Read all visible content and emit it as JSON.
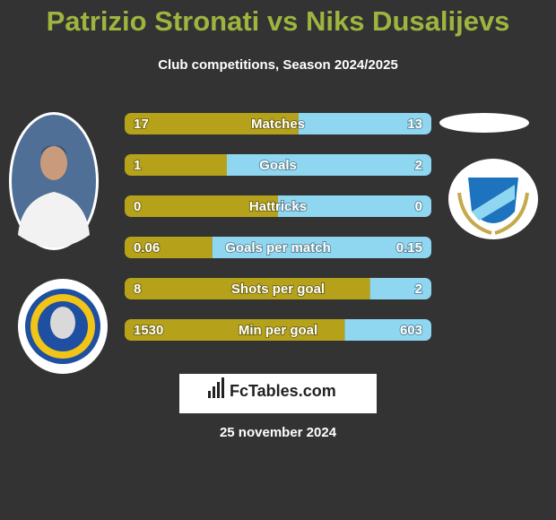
{
  "header": {
    "title": "Patrizio Stronati vs Niks Dusalijevs",
    "subtitle": "Club competitions, Season 2024/2025"
  },
  "rows": [
    {
      "label": "Matches",
      "left": 17,
      "right": 13
    },
    {
      "label": "Goals",
      "left": 1,
      "right": 2
    },
    {
      "label": "Hattricks",
      "left": 0,
      "right": 0
    },
    {
      "label": "Goals per match",
      "left": 0.06,
      "right": 0.15
    },
    {
      "label": "Shots per goal",
      "left": 8,
      "right": 2
    },
    {
      "label": "Min per goal",
      "left": 1530,
      "right": 603
    }
  ],
  "colors": {
    "left": "#b5a21a",
    "right": "#8fd6f0"
  },
  "logo": "FcTables.com",
  "date": "25 november 2024"
}
